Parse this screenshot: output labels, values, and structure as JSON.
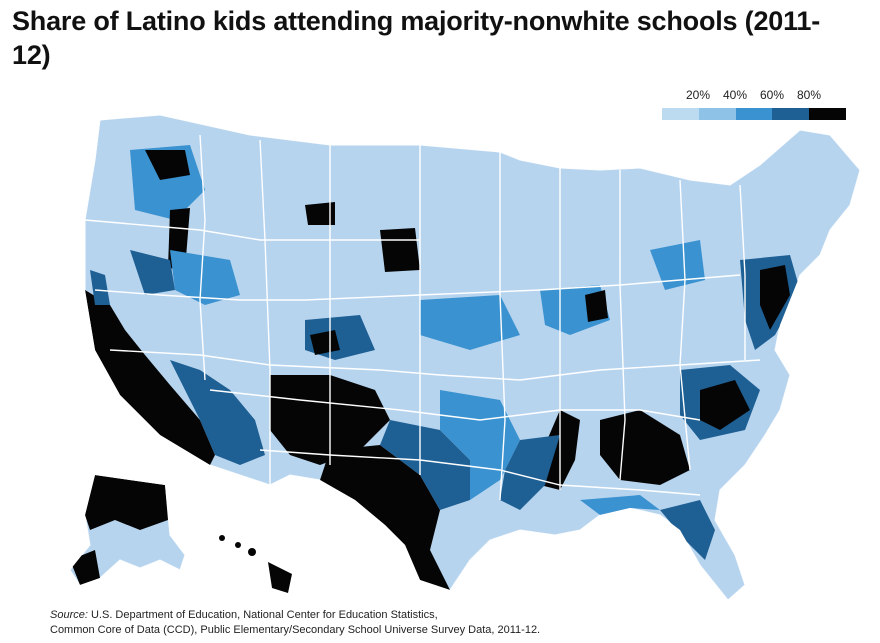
{
  "title": "Share of Latino kids attending majority-nonwhite schools (2011-12)",
  "legend": {
    "labels": [
      "20%",
      "40%",
      "60%",
      "80%"
    ],
    "colors": [
      "#bcdaf0",
      "#8ec2e6",
      "#3a92d0",
      "#1e5f94",
      "#050505"
    ]
  },
  "map": {
    "land_color": "#b7d4ef",
    "border_color": "#ffffff"
  },
  "source": {
    "label": "Source:",
    "line1": " U.S. Department of Education, National Center for Education Statistics,",
    "line2": "Common Core of Data (CCD), Public Elementary/Secondary School Universe Survey Data, 2011-12."
  }
}
